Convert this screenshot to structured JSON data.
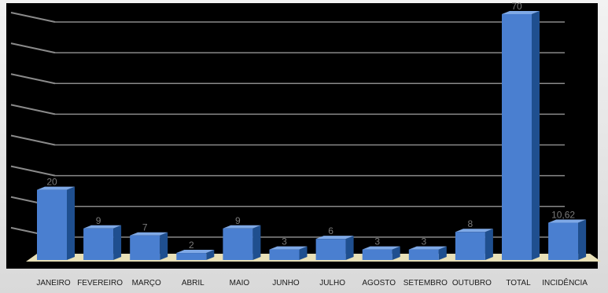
{
  "chart_data": {
    "type": "bar",
    "title": "",
    "xlabel": "",
    "ylabel": "",
    "categories": [
      "JANEIRO",
      "FEVEREIRO",
      "MARÇO",
      "ABRIL",
      "MAIO",
      "JUNHO",
      "JULHO",
      "AGOSTO",
      "SETEMBRO",
      "OUTUBRO",
      "TOTAL",
      "INCIDÊNCIA"
    ],
    "values": [
      20,
      9,
      7,
      2,
      9,
      3,
      6,
      3,
      3,
      8,
      70,
      10.62
    ],
    "value_labels": [
      "20",
      "9",
      "7",
      "2",
      "9",
      "3",
      "6",
      "3",
      "3",
      "8",
      "70",
      "10,62"
    ],
    "ylim": [
      0,
      70
    ],
    "grid": true,
    "style": "3d",
    "colors": {
      "bar_front": "#4a7fd0",
      "bar_side": "#1f4f8f",
      "bar_top": "#7fa9e6",
      "plot_background": "#000000",
      "floor": "#e8e0b8",
      "gridline": "#8a8a8a",
      "value_label": "#7a7a7a",
      "category_label": "#1a1a1a"
    }
  }
}
